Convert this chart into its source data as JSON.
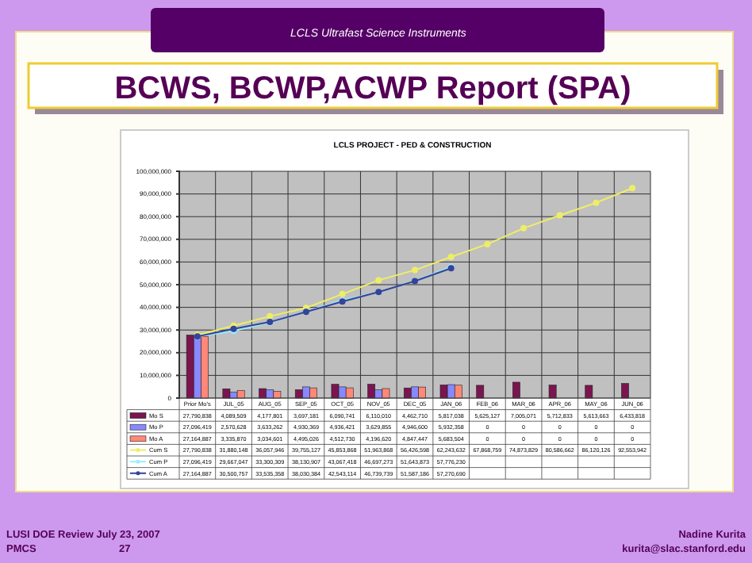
{
  "chart_data": {
    "type": "bar",
    "title": "BCWS, BCWP,ACWP Report (SPA)",
    "subtitle": "LCLS PROJECT - PED & CONSTRUCTION",
    "categories": [
      "Prior Mo's",
      "JUL_05",
      "AUG_05",
      "SEP_05",
      "OCT_05",
      "NOV_05",
      "DEC_05",
      "JAN_06",
      "FEB_06",
      "MAR_06",
      "APR_06",
      "MAY_06",
      "JUN_06"
    ],
    "series": [
      {
        "name": "Mo S",
        "color": "#7a1550",
        "values": [
          27790838,
          4089509,
          4177801,
          3697181,
          6090741,
          6110010,
          4462710,
          5817038,
          5625127,
          7005071,
          5712833,
          5613663,
          6433818
        ],
        "value_labels": [
          "27,790,838",
          "4,089,509",
          "4,177,801",
          "3,697,181",
          "6,090,741",
          "6,110,010",
          "4,462,710",
          "5,817,038",
          "5,625,127",
          "7,005,071",
          "5,712,833",
          "5,613,663",
          "6,433,818"
        ]
      },
      {
        "name": "Mo P",
        "color": "#8888ff",
        "values": [
          27096419,
          2570628,
          3633262,
          4930369,
          4936421,
          3629855,
          4946600,
          5932358,
          0,
          0,
          0,
          0,
          0
        ],
        "value_labels": [
          "27,096,419",
          "2,570,628",
          "3,633,262",
          "4,930,369",
          "4,936,421",
          "3,629,855",
          "4,946,600",
          "5,932,358",
          "0",
          "0",
          "0",
          "0",
          "0"
        ]
      },
      {
        "name": "Mo A",
        "color": "#ff8877",
        "values": [
          27164887,
          3335870,
          3034601,
          4495026,
          4512730,
          4196620,
          4847447,
          5683504,
          0,
          0,
          0,
          0,
          0
        ],
        "value_labels": [
          "27,164,887",
          "3,335,870",
          "3,034,601",
          "4,495,026",
          "4,512,730",
          "4,196,620",
          "4,847,447",
          "5,683,504",
          "0",
          "0",
          "0",
          "0",
          "0"
        ]
      },
      {
        "name": "Cum S",
        "type": "line",
        "color": "#eeee66",
        "values": [
          27790838,
          31880148,
          36057946,
          39755127,
          45853868,
          51963868,
          56426598,
          62243632,
          67868759,
          74873829,
          80586662,
          86120126,
          92553942
        ],
        "value_labels": [
          "27,790,838",
          "31,880,148",
          "36,057,946",
          "39,755,127",
          "45,853,868",
          "51,963,868",
          "56,426,598",
          "62,243,632",
          "67,868,759",
          "74,873,829",
          "80,586,662",
          "86,120,126",
          "92,553,942"
        ]
      },
      {
        "name": "Cum P",
        "type": "line",
        "color": "#99eeff",
        "values": [
          27096419,
          29667047,
          33300309,
          38130907,
          43067418,
          46697273,
          51643873,
          57776230,
          null,
          null,
          null,
          null,
          null
        ],
        "value_labels": [
          "27,096,419",
          "29,667,047",
          "33,300,309",
          "38,130,907",
          "43,067,418",
          "46,697,273",
          "51,643,873",
          "57,776,230",
          null,
          null,
          null,
          null,
          null
        ]
      },
      {
        "name": "Cum A",
        "type": "line",
        "color": "#334499",
        "values": [
          27164887,
          30500757,
          33535358,
          38030384,
          42543114,
          46739739,
          51587186,
          57270690,
          null,
          null,
          null,
          null,
          null
        ],
        "value_labels": [
          "27,164,887",
          "30,500,757",
          "33,535,358",
          "38,030,384",
          "42,543,114",
          "46,739,739",
          "51,587,186",
          "57,270,690",
          null,
          null,
          null,
          null,
          null
        ]
      }
    ],
    "ylim": [
      0,
      100000000
    ],
    "yticks": [
      0,
      {
        "value": 10000000,
        "label": "10,000,000"
      },
      {
        "value": 20000000,
        "label": "20,000,000"
      },
      {
        "value": 30000000,
        "label": "30,000,000"
      },
      {
        "value": 40000000,
        "label": "40,000,000"
      },
      {
        "value": 50000000,
        "label": "50,000,000"
      },
      {
        "value": 60000000,
        "label": "60,000,000"
      },
      {
        "value": 70000000,
        "label": "70,000,000"
      },
      {
        "value": 80000000,
        "label": "80,000,000"
      },
      {
        "value": 90000000,
        "label": "90,000,000"
      },
      {
        "value": 100000000,
        "label": "100,000,000"
      }
    ],
    "grid": true,
    "legend": "bottom",
    "marker": "circle",
    "annotations": [
      "LCLS Ultrafast Science Instruments",
      "LUSI DOE Review July 23, 2007",
      "PMCS",
      "27",
      "Nadine Kurita",
      "kurita@slac.stanford.edu"
    ]
  }
}
